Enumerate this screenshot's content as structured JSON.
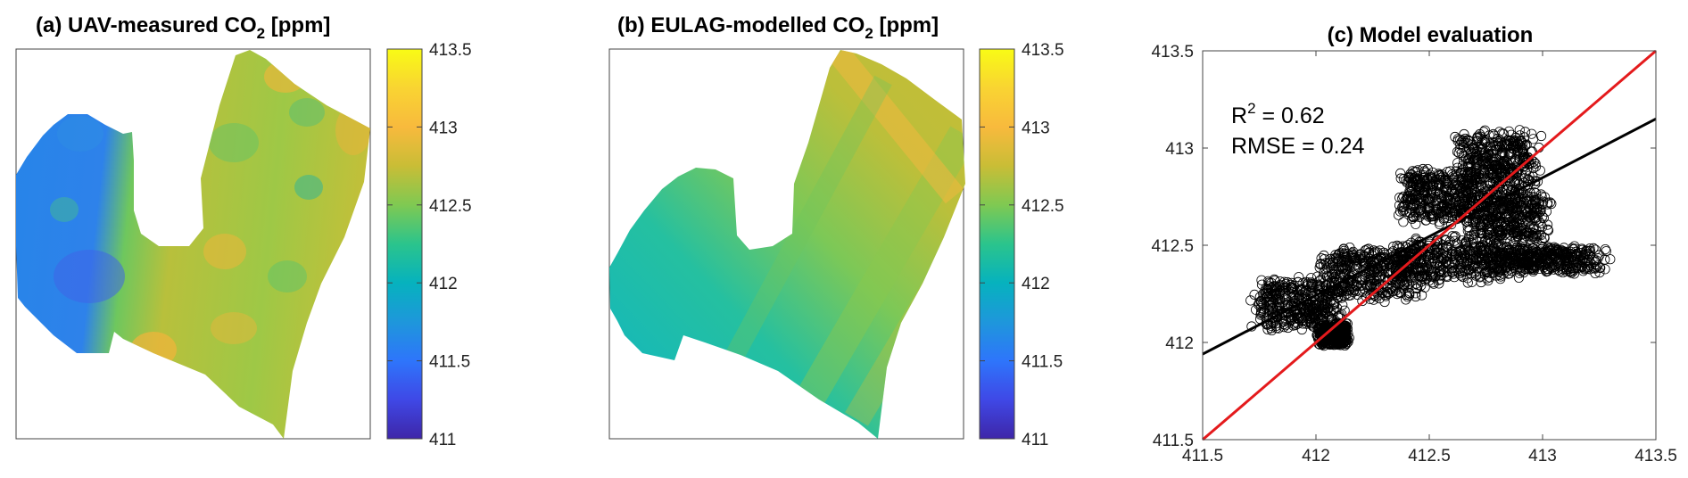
{
  "panels": {
    "a": {
      "title_main": "(a) UAV-measured CO",
      "title_sub": "2",
      "title_tail": " [ppm]",
      "colorbar_ticks": [
        "413.5",
        "413",
        "412.5",
        "412",
        "411.5",
        "411"
      ]
    },
    "b": {
      "title_main": "(b) EULAG-modelled CO",
      "title_sub": "2",
      "title_tail": " [ppm]",
      "colorbar_ticks": [
        "413.5",
        "413",
        "412.5",
        "412",
        "411.5",
        "411"
      ]
    },
    "c": {
      "title": "(c) Model evaluation",
      "r2_label": "R",
      "r2_sup": "2",
      "r2_value": " = 0.62",
      "rmse": "RMSE = 0.24"
    }
  },
  "colormap": {
    "name": "parula",
    "range": [
      411,
      413.5
    ],
    "stops": [
      "#3e26a8",
      "#3f48e6",
      "#2e75fb",
      "#1e97db",
      "#06b2be",
      "#2bc48c",
      "#7fc952",
      "#c9bd36",
      "#f8ba3d",
      "#f9d432",
      "#f9fb15"
    ]
  },
  "chart_data": [
    {
      "type": "heatmap",
      "title": "(a) UAV-measured CO2 [ppm]",
      "colorbar_range": [
        411,
        413.5
      ],
      "colorbar_ticks": [
        411,
        411.5,
        412,
        412.5,
        413,
        413.5
      ]
    },
    {
      "type": "heatmap",
      "title": "(b) EULAG-modelled CO2 [ppm]",
      "colorbar_range": [
        411,
        413.5
      ],
      "colorbar_ticks": [
        411,
        411.5,
        412,
        412.5,
        413,
        413.5
      ]
    },
    {
      "type": "scatter",
      "title": "(c) Model evaluation",
      "xlim": [
        411.5,
        413.5
      ],
      "ylim": [
        411.5,
        413.5
      ],
      "x_ticks": [
        411.5,
        412,
        412.5,
        413,
        413.5
      ],
      "y_ticks": [
        411.5,
        412,
        412.5,
        413,
        413.5
      ],
      "x_tick_labels": [
        "411.5",
        "412",
        "412.5",
        "413",
        "413.5"
      ],
      "y_tick_labels": [
        "411.5",
        "412",
        "412.5",
        "413",
        "413.5"
      ],
      "one_to_one_line": {
        "color": "#e41a1c",
        "from": [
          411.5,
          411.5
        ],
        "to": [
          413.5,
          413.5
        ]
      },
      "regression_line": {
        "color": "#000000",
        "from": [
          411.5,
          411.94
        ],
        "to": [
          413.5,
          413.15
        ]
      },
      "clusters": [
        {
          "x_range": [
            411.7,
            412.15
          ],
          "y_range": [
            412.05,
            412.35
          ]
        },
        {
          "x_range": [
            412.0,
            412.5
          ],
          "y_range": [
            412.2,
            412.5
          ]
        },
        {
          "x_range": [
            412.3,
            412.9
          ],
          "y_range": [
            412.3,
            412.55
          ]
        },
        {
          "x_range": [
            412.35,
            412.75
          ],
          "y_range": [
            412.6,
            412.9
          ]
        },
        {
          "x_range": [
            412.6,
            413.0
          ],
          "y_range": [
            412.75,
            413.1
          ]
        },
        {
          "x_range": [
            412.65,
            413.05
          ],
          "y_range": [
            412.5,
            412.8
          ]
        },
        {
          "x_range": [
            412.75,
            413.3
          ],
          "y_range": [
            412.35,
            412.5
          ]
        },
        {
          "x_range": [
            412.0,
            412.15
          ],
          "y_range": [
            411.98,
            412.1
          ]
        }
      ]
    }
  ]
}
